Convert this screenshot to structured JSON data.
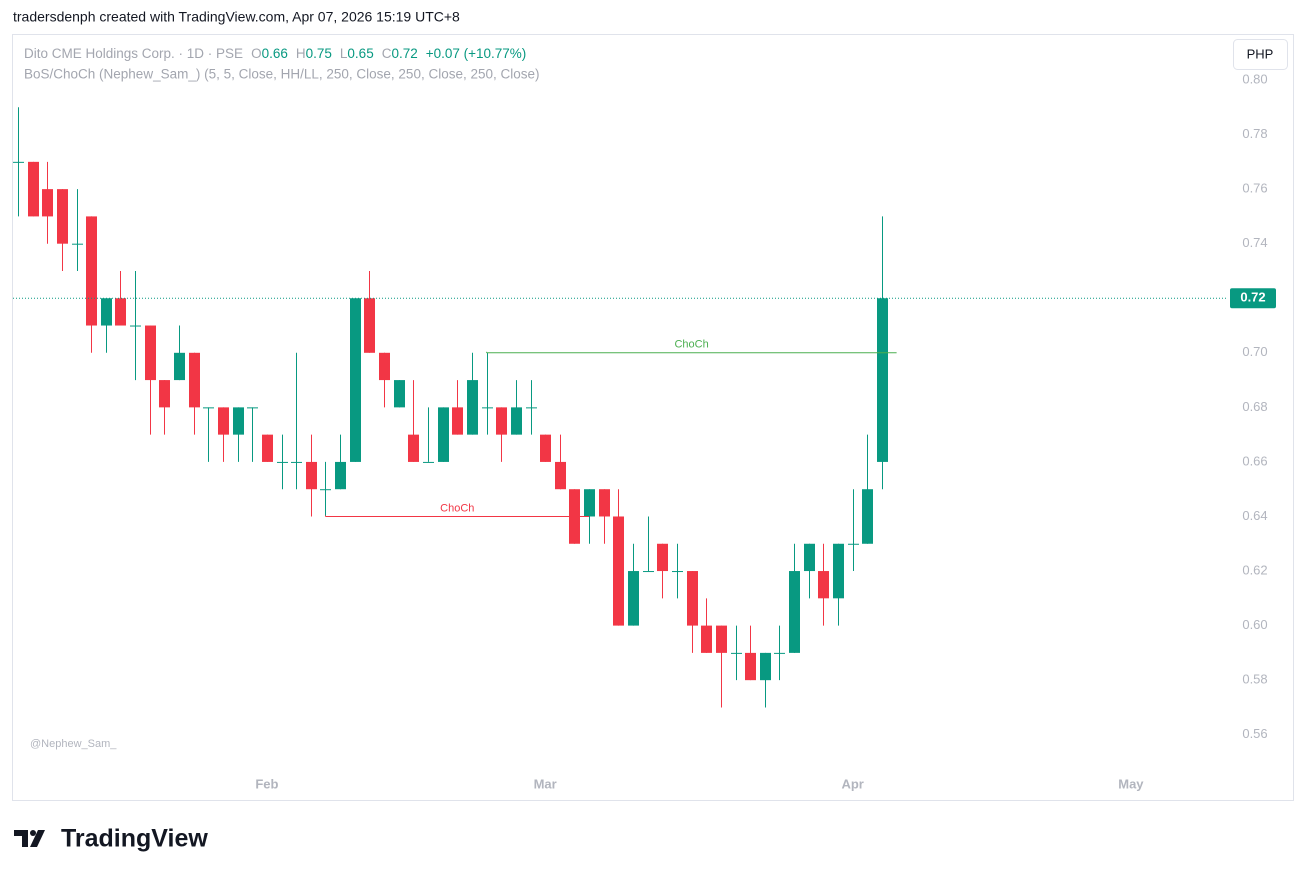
{
  "header": {
    "caption": "tradersdenph created with TradingView.com, Apr 07, 2026 15:19 UTC+8"
  },
  "footer": {
    "brand": "TradingView"
  },
  "chart_data": {
    "type": "candlestick",
    "symbol": "Dito CME Holdings Corp. · 1D · PSE",
    "ohlc_labels": [
      "O",
      "H",
      "L",
      "C"
    ],
    "change": "+0.07 (+10.77%)",
    "indicator": "BoS/ChoCh (Nephew_Sam_) (5, 5, Close, HH/LL, 250, Close, 250, Close, 250, Close)",
    "currency": "PHP",
    "watermark": "@Nephew_Sam_",
    "up_color": "#089981",
    "down_color": "#f23645",
    "last_price": 0.72,
    "candles": [
      {
        "open": 0.77,
        "high": 0.79,
        "low": 0.75,
        "close": 0.77
      },
      {
        "open": 0.77,
        "high": 0.77,
        "low": 0.75,
        "close": 0.75
      },
      {
        "open": 0.76,
        "high": 0.77,
        "low": 0.74,
        "close": 0.75
      },
      {
        "open": 0.76,
        "high": 0.76,
        "low": 0.73,
        "close": 0.74
      },
      {
        "open": 0.74,
        "high": 0.76,
        "low": 0.73,
        "close": 0.74
      },
      {
        "open": 0.75,
        "high": 0.75,
        "low": 0.7,
        "close": 0.71
      },
      {
        "open": 0.71,
        "high": 0.72,
        "low": 0.7,
        "close": 0.72
      },
      {
        "open": 0.72,
        "high": 0.73,
        "low": 0.71,
        "close": 0.71
      },
      {
        "open": 0.71,
        "high": 0.73,
        "low": 0.69,
        "close": 0.71
      },
      {
        "open": 0.71,
        "high": 0.71,
        "low": 0.67,
        "close": 0.69
      },
      {
        "open": 0.69,
        "high": 0.69,
        "low": 0.67,
        "close": 0.68
      },
      {
        "open": 0.69,
        "high": 0.71,
        "low": 0.69,
        "close": 0.7
      },
      {
        "open": 0.7,
        "high": 0.7,
        "low": 0.67,
        "close": 0.68
      },
      {
        "open": 0.68,
        "high": 0.68,
        "low": 0.66,
        "close": 0.68
      },
      {
        "open": 0.68,
        "high": 0.68,
        "low": 0.66,
        "close": 0.67
      },
      {
        "open": 0.67,
        "high": 0.68,
        "low": 0.66,
        "close": 0.68
      },
      {
        "open": 0.68,
        "high": 0.68,
        "low": 0.66,
        "close": 0.68
      },
      {
        "open": 0.67,
        "high": 0.67,
        "low": 0.66,
        "close": 0.66
      },
      {
        "open": 0.66,
        "high": 0.67,
        "low": 0.65,
        "close": 0.66
      },
      {
        "open": 0.66,
        "high": 0.7,
        "low": 0.65,
        "close": 0.66
      },
      {
        "open": 0.66,
        "high": 0.67,
        "low": 0.64,
        "close": 0.65
      },
      {
        "open": 0.65,
        "high": 0.66,
        "low": 0.64,
        "close": 0.65
      },
      {
        "open": 0.65,
        "high": 0.67,
        "low": 0.65,
        "close": 0.66
      },
      {
        "open": 0.66,
        "high": 0.72,
        "low": 0.66,
        "close": 0.72
      },
      {
        "open": 0.72,
        "high": 0.73,
        "low": 0.7,
        "close": 0.7
      },
      {
        "open": 0.7,
        "high": 0.7,
        "low": 0.68,
        "close": 0.69
      },
      {
        "open": 0.68,
        "high": 0.69,
        "low": 0.68,
        "close": 0.69
      },
      {
        "open": 0.67,
        "high": 0.69,
        "low": 0.66,
        "close": 0.66
      },
      {
        "open": 0.66,
        "high": 0.68,
        "low": 0.66,
        "close": 0.66
      },
      {
        "open": 0.66,
        "high": 0.68,
        "low": 0.66,
        "close": 0.68
      },
      {
        "open": 0.68,
        "high": 0.69,
        "low": 0.67,
        "close": 0.67
      },
      {
        "open": 0.67,
        "high": 0.7,
        "low": 0.67,
        "close": 0.69
      },
      {
        "open": 0.68,
        "high": 0.7,
        "low": 0.67,
        "close": 0.68
      },
      {
        "open": 0.68,
        "high": 0.68,
        "low": 0.66,
        "close": 0.67
      },
      {
        "open": 0.67,
        "high": 0.69,
        "low": 0.67,
        "close": 0.68
      },
      {
        "open": 0.68,
        "high": 0.69,
        "low": 0.67,
        "close": 0.68
      },
      {
        "open": 0.67,
        "high": 0.67,
        "low": 0.66,
        "close": 0.66
      },
      {
        "open": 0.66,
        "high": 0.67,
        "low": 0.65,
        "close": 0.65
      },
      {
        "open": 0.65,
        "high": 0.65,
        "low": 0.63,
        "close": 0.63
      },
      {
        "open": 0.64,
        "high": 0.65,
        "low": 0.63,
        "close": 0.65
      },
      {
        "open": 0.65,
        "high": 0.65,
        "low": 0.63,
        "close": 0.64
      },
      {
        "open": 0.64,
        "high": 0.65,
        "low": 0.6,
        "close": 0.6
      },
      {
        "open": 0.6,
        "high": 0.63,
        "low": 0.6,
        "close": 0.62
      },
      {
        "open": 0.62,
        "high": 0.64,
        "low": 0.62,
        "close": 0.62
      },
      {
        "open": 0.63,
        "high": 0.63,
        "low": 0.61,
        "close": 0.62
      },
      {
        "open": 0.62,
        "high": 0.63,
        "low": 0.61,
        "close": 0.62
      },
      {
        "open": 0.62,
        "high": 0.62,
        "low": 0.59,
        "close": 0.6
      },
      {
        "open": 0.6,
        "high": 0.61,
        "low": 0.59,
        "close": 0.59
      },
      {
        "open": 0.6,
        "high": 0.6,
        "low": 0.57,
        "close": 0.59
      },
      {
        "open": 0.59,
        "high": 0.6,
        "low": 0.58,
        "close": 0.59
      },
      {
        "open": 0.59,
        "high": 0.6,
        "low": 0.58,
        "close": 0.58
      },
      {
        "open": 0.58,
        "high": 0.59,
        "low": 0.57,
        "close": 0.59
      },
      {
        "open": 0.59,
        "high": 0.6,
        "low": 0.58,
        "close": 0.59
      },
      {
        "open": 0.59,
        "high": 0.63,
        "low": 0.59,
        "close": 0.62
      },
      {
        "open": 0.62,
        "high": 0.63,
        "low": 0.61,
        "close": 0.63
      },
      {
        "open": 0.62,
        "high": 0.63,
        "low": 0.6,
        "close": 0.61
      },
      {
        "open": 0.61,
        "high": 0.63,
        "low": 0.6,
        "close": 0.63
      },
      {
        "open": 0.63,
        "high": 0.65,
        "low": 0.62,
        "close": 0.63
      },
      {
        "open": 0.63,
        "high": 0.67,
        "low": 0.63,
        "close": 0.65
      },
      {
        "open": 0.66,
        "high": 0.75,
        "low": 0.65,
        "close": 0.72
      }
    ],
    "annotations": [
      {
        "label": "ChoCh",
        "color": "#4caf50",
        "price": 0.7,
        "from": 32,
        "to": 60
      },
      {
        "label": "ChoCh",
        "color": "#f23645",
        "price": 0.64,
        "from": 21,
        "to": 39
      }
    ],
    "xlim": [
      -0.34,
      82.63
    ],
    "xticks": [
      {
        "value": 17,
        "label": "Feb"
      },
      {
        "value": 36,
        "label": "Mar"
      },
      {
        "value": 57,
        "label": "Apr"
      },
      {
        "value": 76,
        "label": "May"
      }
    ],
    "ylim": [
      0.55,
      0.8165
    ],
    "yticks": [
      0.56,
      0.58,
      {
        "value": 0.6,
        "label": "0.60"
      },
      0.62,
      0.64,
      0.66,
      0.68,
      {
        "value": 0.7,
        "label": "0.70"
      },
      0.72,
      0.74,
      0.76,
      0.78,
      {
        "value": 0.8,
        "label": "0.80"
      }
    ]
  }
}
